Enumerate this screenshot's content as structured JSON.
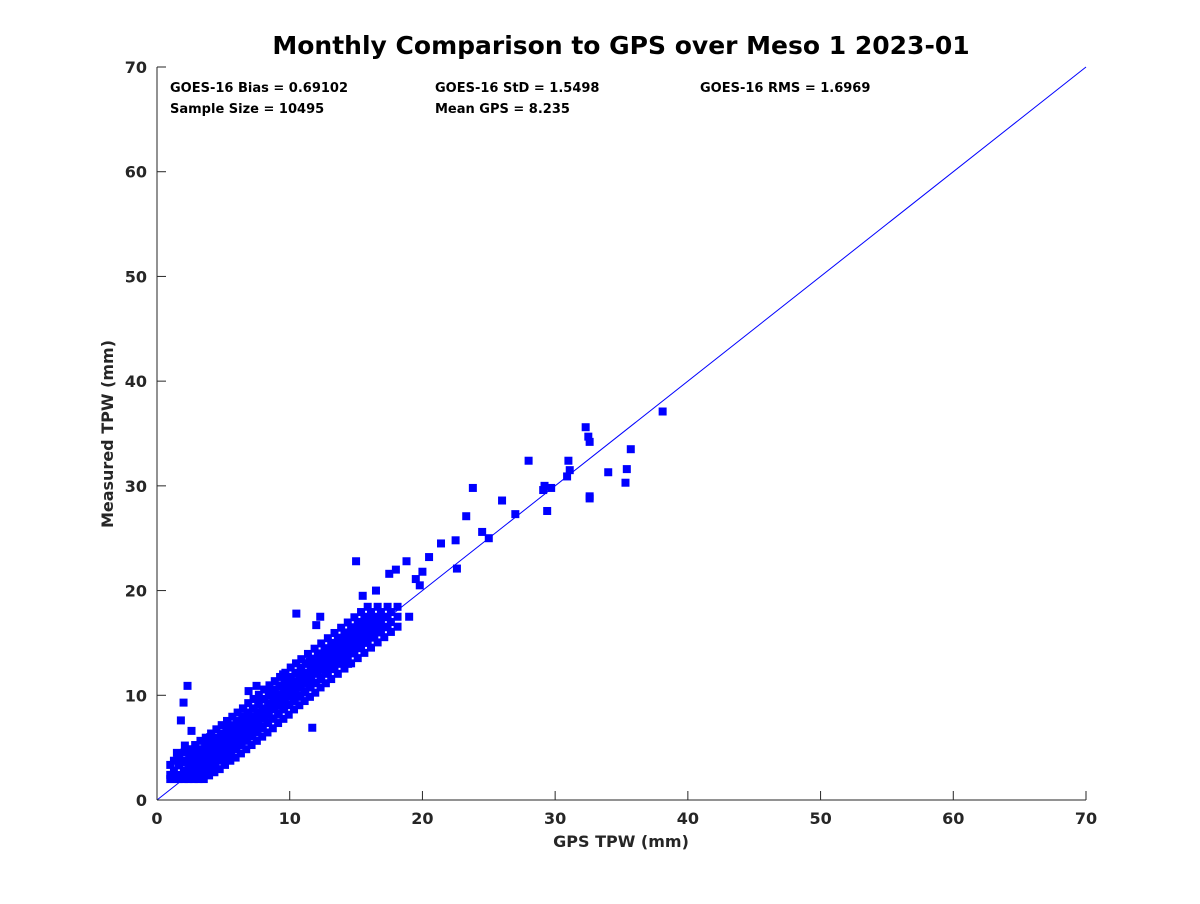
{
  "chart_data": {
    "type": "scatter",
    "title": "Monthly Comparison to GPS over Meso 1 2023-01",
    "xlabel": "GPS TPW (mm)",
    "ylabel": "Measured TPW (mm)",
    "xlim": [
      0,
      70
    ],
    "ylim": [
      0,
      70
    ],
    "xticks": [
      "0",
      "10",
      "20",
      "30",
      "40",
      "50",
      "60",
      "70"
    ],
    "yticks": [
      "0",
      "10",
      "20",
      "30",
      "40",
      "50",
      "60",
      "70"
    ],
    "grid": false,
    "marker": "square",
    "marker_color": "#0000ff",
    "reference_line": {
      "name": "1:1 line",
      "from": [
        0,
        0
      ],
      "to": [
        70,
        70
      ],
      "color": "#0000ff"
    },
    "stats": [
      [
        "GOES-16 Bias = 0.69102",
        "GOES-16 StD = 1.5498",
        "GOES-16 RMS = 1.6969"
      ],
      [
        "Sample Size = 10495",
        "Mean GPS = 8.235"
      ]
    ],
    "series": [
      {
        "name": "GOES-16 vs GPS",
        "x": [
          38.1,
          32.3,
          32.5,
          32.6,
          35.7,
          35.4,
          35.3,
          34.0,
          32.6,
          32.6,
          31.1,
          30.9,
          31.0,
          29.4,
          29.7,
          29.1,
          29.2,
          28.0,
          27.0,
          26.0,
          25.0,
          24.5,
          23.8,
          23.3,
          22.6,
          22.5,
          21.4,
          20.5,
          20.0,
          19.8,
          19.5,
          19.0,
          18.8,
          18.0,
          17.5,
          16.8,
          16.5,
          16.0,
          15.5,
          15.0,
          14.8,
          14.4,
          13.3,
          12.8,
          12.0,
          11.5,
          10.3,
          9.5,
          8.9,
          8.6,
          8.0,
          7.7,
          7.2,
          6.5,
          5.3,
          4.3,
          4.0,
          2.3,
          2.6,
          1.8,
          1.6,
          2.0,
          2.1,
          1.5,
          1.1,
          12.3,
          10.5,
          11.7,
          6.9,
          7.5
        ],
        "y": [
          37.1,
          35.6,
          34.7,
          34.2,
          33.5,
          31.6,
          30.3,
          31.3,
          29.0,
          28.8,
          31.5,
          30.9,
          32.4,
          27.6,
          29.8,
          29.6,
          30.0,
          32.4,
          27.3,
          28.6,
          25.0,
          25.6,
          29.8,
          27.1,
          22.1,
          24.8,
          24.5,
          23.2,
          21.8,
          20.5,
          21.1,
          17.5,
          22.8,
          22.0,
          21.6,
          17.2,
          20.0,
          17.0,
          19.5,
          22.8,
          15.8,
          13.0,
          14.8,
          12.5,
          16.7,
          13.2,
          11.3,
          12.0,
          9.4,
          10.5,
          8.2,
          9.6,
          7.4,
          8.7,
          7.2,
          5.5,
          6.0,
          10.9,
          6.6,
          7.6,
          4.0,
          9.3,
          5.2,
          4.5,
          2.3,
          17.5,
          17.8,
          6.9,
          10.4,
          10.9
        ]
      }
    ],
    "density_cloud": [
      {
        "x": 2.0,
        "y": 2.4
      },
      {
        "x": 2.4,
        "y": 2.8
      },
      {
        "x": 2.8,
        "y": 3.3
      },
      {
        "x": 3.2,
        "y": 3.6
      },
      {
        "x": 3.6,
        "y": 3.9
      },
      {
        "x": 4.0,
        "y": 4.3
      },
      {
        "x": 4.4,
        "y": 4.7
      },
      {
        "x": 4.8,
        "y": 5.0
      },
      {
        "x": 5.2,
        "y": 5.4
      },
      {
        "x": 5.6,
        "y": 5.8
      },
      {
        "x": 6.0,
        "y": 6.2
      },
      {
        "x": 6.4,
        "y": 6.6
      },
      {
        "x": 6.8,
        "y": 7.0
      },
      {
        "x": 7.2,
        "y": 7.4
      },
      {
        "x": 7.6,
        "y": 7.8
      },
      {
        "x": 8.0,
        "y": 8.3
      },
      {
        "x": 8.4,
        "y": 8.7
      },
      {
        "x": 8.8,
        "y": 9.1
      },
      {
        "x": 9.2,
        "y": 9.6
      },
      {
        "x": 9.6,
        "y": 10.0
      },
      {
        "x": 10.0,
        "y": 10.4
      },
      {
        "x": 10.4,
        "y": 10.8
      },
      {
        "x": 10.8,
        "y": 11.2
      },
      {
        "x": 11.2,
        "y": 11.7
      },
      {
        "x": 11.6,
        "y": 12.1
      },
      {
        "x": 12.0,
        "y": 12.5
      },
      {
        "x": 12.5,
        "y": 13.0
      },
      {
        "x": 13.0,
        "y": 13.5
      },
      {
        "x": 13.5,
        "y": 14.0
      },
      {
        "x": 14.0,
        "y": 14.5
      },
      {
        "x": 14.5,
        "y": 15.0
      },
      {
        "x": 15.0,
        "y": 15.5
      },
      {
        "x": 15.5,
        "y": 16.0
      },
      {
        "x": 16.0,
        "y": 16.5
      },
      {
        "x": 16.5,
        "y": 17.0
      },
      {
        "x": 17.0,
        "y": 17.5
      }
    ]
  }
}
